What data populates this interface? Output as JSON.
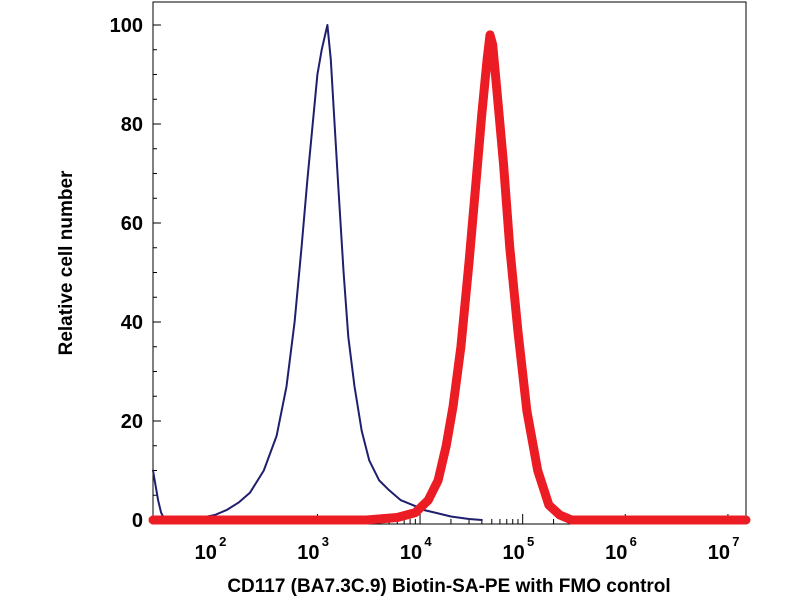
{
  "chart_data": {
    "type": "line",
    "xlabel": "CD117 (BA7.3C.9) Biotin-SA-PE with FMO control",
    "ylabel": "Relative cell number",
    "xscale": "log",
    "xlim": [
      25,
      15000000
    ],
    "ylim": [
      0,
      105
    ],
    "yticks": [
      0,
      20,
      40,
      60,
      80,
      100
    ],
    "xticks": [
      {
        "base": "10",
        "exp": "2",
        "value": 100
      },
      {
        "base": "10",
        "exp": "3",
        "value": 1000
      },
      {
        "base": "10",
        "exp": "4",
        "value": 10000
      },
      {
        "base": "10",
        "exp": "5",
        "value": 100000
      },
      {
        "base": "10",
        "exp": "6",
        "value": 1000000
      },
      {
        "base": "10",
        "exp": "7",
        "value": 10000000
      }
    ],
    "grid": false,
    "series": [
      {
        "color": "#1f1f6e",
        "points": [
          [
            25,
            10
          ],
          [
            28,
            4
          ],
          [
            30,
            1.5
          ],
          [
            32,
            0.3
          ],
          [
            40,
            0.2
          ],
          [
            60,
            0.3
          ],
          [
            80,
            0.6
          ],
          [
            100,
            1
          ],
          [
            130,
            2
          ],
          [
            170,
            3.5
          ],
          [
            220,
            5.5
          ],
          [
            300,
            10
          ],
          [
            400,
            17
          ],
          [
            500,
            27
          ],
          [
            600,
            40
          ],
          [
            700,
            55
          ],
          [
            800,
            69
          ],
          [
            900,
            80
          ],
          [
            1000,
            90
          ],
          [
            1100,
            95
          ],
          [
            1250,
            100
          ],
          [
            1350,
            93
          ],
          [
            1450,
            82
          ],
          [
            1600,
            67
          ],
          [
            1800,
            50
          ],
          [
            2000,
            37
          ],
          [
            2300,
            27
          ],
          [
            2700,
            18
          ],
          [
            3200,
            12
          ],
          [
            4000,
            8
          ],
          [
            5000,
            6
          ],
          [
            6500,
            4
          ],
          [
            8500,
            3
          ],
          [
            11000,
            2
          ],
          [
            14000,
            1.5
          ],
          [
            20000,
            0.7
          ],
          [
            30000,
            0.2
          ],
          [
            40000,
            0
          ]
        ]
      },
      {
        "color": "#ec1c24",
        "points": [
          [
            25,
            0
          ],
          [
            3000,
            0
          ],
          [
            6000,
            0.5
          ],
          [
            9000,
            1.5
          ],
          [
            12000,
            4
          ],
          [
            15000,
            8
          ],
          [
            18000,
            15
          ],
          [
            21000,
            23
          ],
          [
            25000,
            35
          ],
          [
            30000,
            52
          ],
          [
            35000,
            68
          ],
          [
            40000,
            82
          ],
          [
            45000,
            93
          ],
          [
            48000,
            98
          ],
          [
            51000,
            96
          ],
          [
            56000,
            87
          ],
          [
            65000,
            72
          ],
          [
            75000,
            55
          ],
          [
            90000,
            38
          ],
          [
            110000,
            22
          ],
          [
            140000,
            10
          ],
          [
            180000,
            3
          ],
          [
            230000,
            1
          ],
          [
            300000,
            0
          ],
          [
            15000000,
            0
          ]
        ]
      }
    ]
  }
}
